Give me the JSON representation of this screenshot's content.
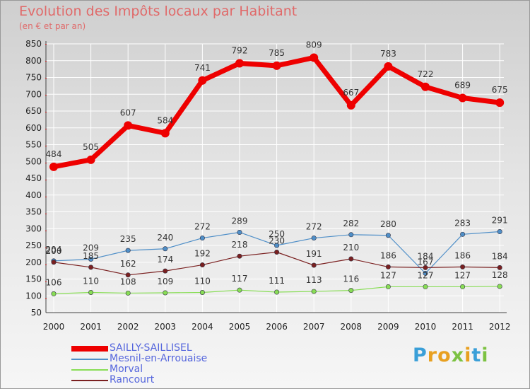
{
  "chart_data": {
    "type": "line",
    "title": "Evolution des Impôts locaux par Habitant",
    "subtitle": "(en € et par an)",
    "xlabel": "",
    "ylabel": "",
    "x": [
      "2000",
      "2001",
      "2002",
      "2003",
      "2004",
      "2005",
      "2006",
      "2007",
      "2008",
      "2009",
      "2010",
      "2011",
      "2012"
    ],
    "ylim": [
      50,
      850
    ],
    "yticks": [
      50,
      100,
      150,
      200,
      250,
      300,
      350,
      400,
      450,
      500,
      550,
      600,
      650,
      700,
      750,
      800,
      850
    ],
    "grid": true,
    "legend_position": "bottom-left",
    "series": [
      {
        "name": "SAILLY-SAILLISEL",
        "color": "#ee0000",
        "values": [
          484,
          505,
          607,
          584,
          741,
          792,
          785,
          809,
          667,
          783,
          722,
          689,
          675
        ]
      },
      {
        "name": "Mesnil-en-Arrouaise",
        "color": "#4f8fc8",
        "values": [
          204,
          209,
          235,
          240,
          272,
          289,
          250,
          272,
          282,
          280,
          167,
          283,
          291
        ]
      },
      {
        "name": "Morval",
        "color": "#88dd55",
        "values": [
          106,
          110,
          108,
          109,
          110,
          117,
          111,
          113,
          116,
          127,
          127,
          127,
          128
        ]
      },
      {
        "name": "Rancourt",
        "color": "#7a2020",
        "values": [
          200,
          185,
          162,
          174,
          192,
          218,
          230,
          191,
          210,
          186,
          184,
          186,
          184
        ]
      }
    ],
    "data_labels": [
      [
        "484",
        "505",
        "607",
        "584",
        "741",
        "792",
        "785",
        "809",
        "667",
        "783",
        "722",
        "689",
        "675"
      ],
      [
        "204",
        "209",
        "235",
        "240",
        "272",
        "289",
        "250",
        "272",
        "282",
        "280",
        "167",
        "283",
        "291"
      ],
      [
        "106",
        "110",
        "108",
        "109",
        "110",
        "117",
        "111",
        "113",
        "116",
        "127",
        "127",
        "127",
        "128"
      ],
      [
        "200",
        "185",
        "162",
        "174",
        "192",
        "218",
        "230",
        "191",
        "210",
        "186",
        "184",
        "186",
        "184"
      ]
    ]
  },
  "brand": {
    "text": "Proxiti",
    "letters": [
      "P",
      "r",
      "o",
      "x",
      "i",
      "t",
      "i"
    ],
    "letter_colors": [
      "#3a9fd8",
      "#e8a020",
      "#e8a020",
      "#7cc242",
      "#e8a020",
      "#3a9fd8",
      "#7cc242"
    ]
  }
}
